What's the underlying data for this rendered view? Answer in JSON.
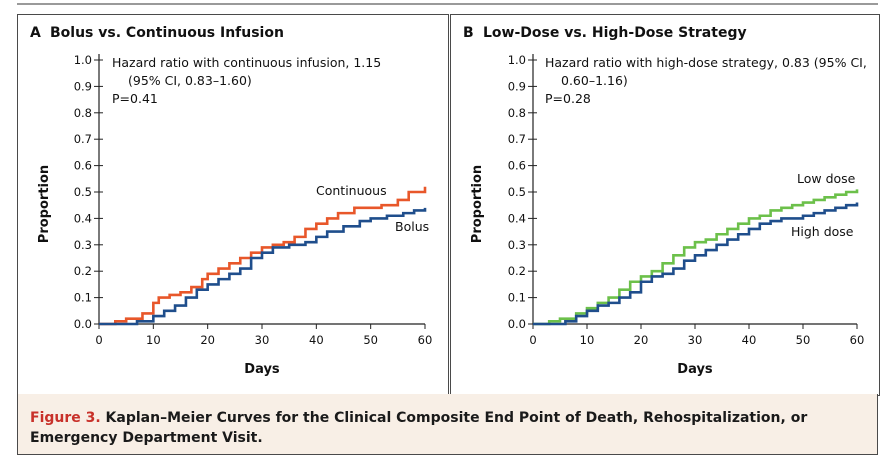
{
  "caption": {
    "label": "Figure 3.",
    "text": " Kaplan–Meier Curves for the Clinical Composite End Point of Death, Rehospitalization, or Emergency Department Visit."
  },
  "colors": {
    "orange": "#e8572a",
    "blue": "#1f4e8c",
    "green": "#6cc04a",
    "caption_bg": "#f8efe6",
    "caption_label": "#c8312a"
  },
  "chart_data": [
    {
      "type": "line",
      "panel_letter": "A",
      "title": "Bolus vs. Continuous Infusion",
      "xlabel": "Days",
      "ylabel": "Proportion",
      "xlim": [
        0,
        60
      ],
      "ylim": [
        0,
        1.0
      ],
      "xticks": [
        0,
        10,
        20,
        30,
        40,
        50,
        60
      ],
      "yticks": [
        "0.0",
        "0.1",
        "0.2",
        "0.3",
        "0.4",
        "0.5",
        "0.6",
        "0.7",
        "0.8",
        "0.9",
        "1.0"
      ],
      "annotation_lines": [
        "Hazard ratio with continuous infusion, 1.15",
        "(95% CI, 0.83–1.60)",
        "P=0.41"
      ],
      "series": [
        {
          "name": "Continuous",
          "color": "#e8572a",
          "x": [
            0,
            3,
            5,
            8,
            10,
            11,
            13,
            15,
            17,
            19,
            20,
            22,
            24,
            26,
            28,
            30,
            32,
            34,
            36,
            38,
            40,
            42,
            44,
            47,
            50,
            52,
            55,
            57,
            60
          ],
          "y": [
            0.0,
            0.01,
            0.02,
            0.04,
            0.08,
            0.1,
            0.11,
            0.12,
            0.14,
            0.17,
            0.19,
            0.21,
            0.23,
            0.25,
            0.27,
            0.29,
            0.3,
            0.31,
            0.33,
            0.36,
            0.38,
            0.4,
            0.42,
            0.44,
            0.44,
            0.45,
            0.47,
            0.5,
            0.52
          ]
        },
        {
          "name": "Bolus",
          "color": "#1f4e8c",
          "x": [
            0,
            4,
            7,
            10,
            12,
            14,
            16,
            18,
            20,
            22,
            24,
            26,
            28,
            30,
            32,
            35,
            38,
            40,
            42,
            45,
            48,
            50,
            53,
            56,
            58,
            60
          ],
          "y": [
            0.0,
            0.0,
            0.01,
            0.03,
            0.05,
            0.07,
            0.1,
            0.13,
            0.15,
            0.17,
            0.19,
            0.21,
            0.25,
            0.27,
            0.29,
            0.3,
            0.31,
            0.33,
            0.35,
            0.37,
            0.39,
            0.4,
            0.41,
            0.42,
            0.43,
            0.44
          ]
        }
      ]
    },
    {
      "type": "line",
      "panel_letter": "B",
      "title": "Low-Dose vs. High-Dose Strategy",
      "xlabel": "Days",
      "ylabel": "Proportion",
      "xlim": [
        0,
        60
      ],
      "ylim": [
        0,
        1.0
      ],
      "xticks": [
        0,
        10,
        20,
        30,
        40,
        50,
        60
      ],
      "yticks": [
        "0.0",
        "0.1",
        "0.2",
        "0.3",
        "0.4",
        "0.5",
        "0.6",
        "0.7",
        "0.8",
        "0.9",
        "1.0"
      ],
      "annotation_lines": [
        "Hazard ratio with high-dose strategy, 0.83 (95% CI,",
        "0.60–1.16)",
        "P=0.28"
      ],
      "series": [
        {
          "name": "Low dose",
          "color": "#6cc04a",
          "x": [
            0,
            3,
            5,
            8,
            10,
            12,
            14,
            16,
            18,
            20,
            22,
            24,
            26,
            28,
            30,
            32,
            34,
            36,
            38,
            40,
            42,
            44,
            46,
            48,
            50,
            52,
            54,
            56,
            58,
            60
          ],
          "y": [
            0.0,
            0.01,
            0.02,
            0.04,
            0.06,
            0.08,
            0.1,
            0.13,
            0.16,
            0.18,
            0.2,
            0.23,
            0.26,
            0.29,
            0.31,
            0.32,
            0.34,
            0.36,
            0.38,
            0.4,
            0.41,
            0.43,
            0.44,
            0.45,
            0.46,
            0.47,
            0.48,
            0.49,
            0.5,
            0.51
          ]
        },
        {
          "name": "High dose",
          "color": "#1f4e8c",
          "x": [
            0,
            4,
            6,
            8,
            10,
            12,
            14,
            16,
            18,
            20,
            22,
            24,
            26,
            28,
            30,
            32,
            34,
            36,
            38,
            40,
            42,
            44,
            46,
            48,
            50,
            52,
            54,
            56,
            58,
            60
          ],
          "y": [
            0.0,
            0.0,
            0.01,
            0.03,
            0.05,
            0.07,
            0.08,
            0.1,
            0.12,
            0.16,
            0.18,
            0.19,
            0.21,
            0.24,
            0.26,
            0.28,
            0.3,
            0.32,
            0.34,
            0.36,
            0.38,
            0.39,
            0.4,
            0.4,
            0.41,
            0.42,
            0.43,
            0.44,
            0.45,
            0.46
          ]
        }
      ]
    }
  ]
}
